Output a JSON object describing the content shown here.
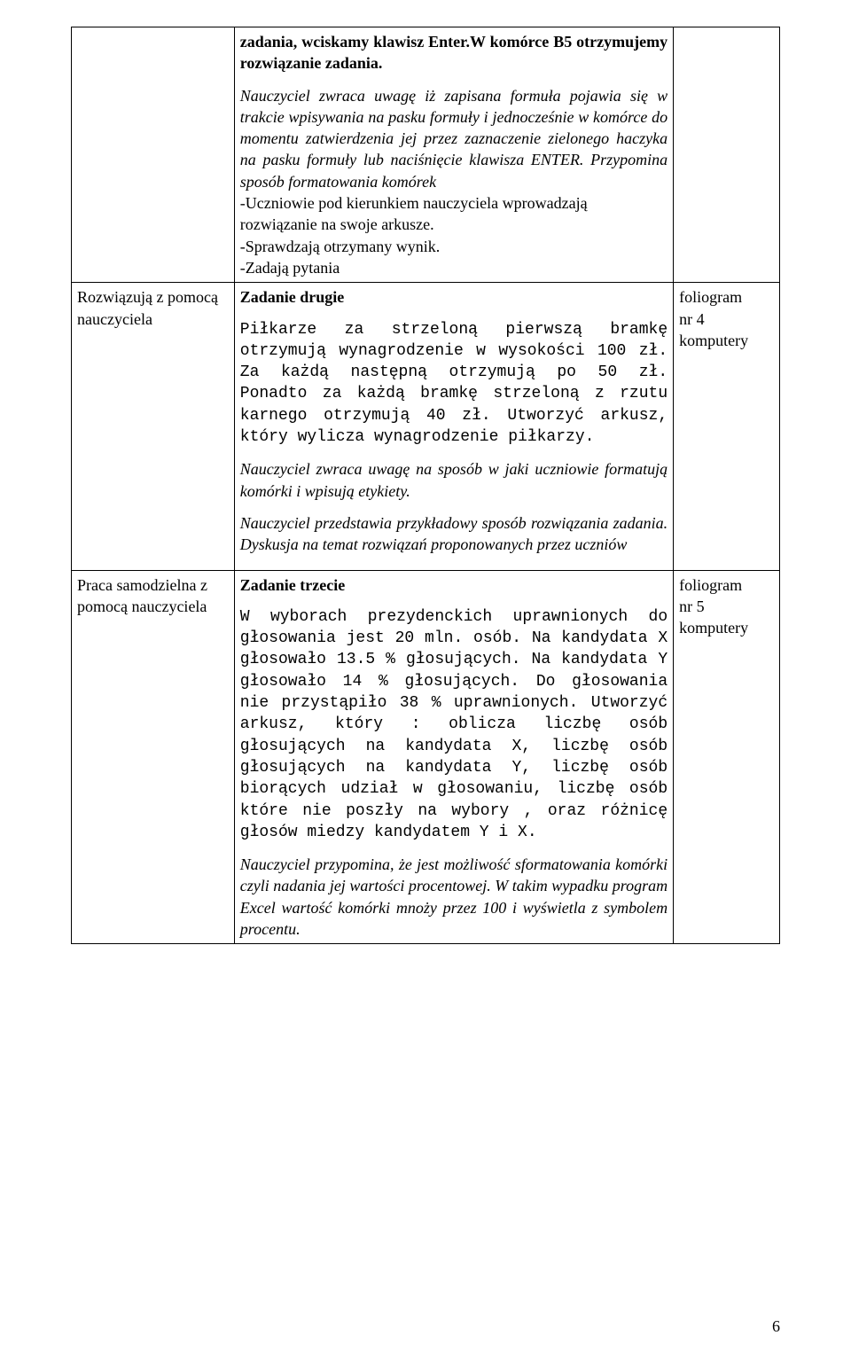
{
  "row1": {
    "col2": {
      "p1_bold": "zadania, wciskamy klawisz Enter.W komórce B5 otrzymujemy rozwiązanie zadania.",
      "p2_italic": "Nauczyciel zwraca uwagę iż zapisana formuła pojawia się w trakcie wpisywania na pasku formuły i jednocześnie w komórce do momentu zatwierdzenia jej przez zaznaczenie zielonego haczyka na pasku formuły lub naciśnięcie klawisza ENTER. Przypomina sposób formatowania komórek",
      "p3": "-Uczniowie pod kierunkiem nauczyciela wprowadzają",
      "p3b": " rozwiązanie na swoje arkusze.",
      "p4": "-Sprawdzają otrzymany wynik.",
      "p5": "-Zadają pytania"
    }
  },
  "row2": {
    "col1": "Rozwiązują z pomocą nauczyciela",
    "col2": {
      "title": "Zadanie drugie",
      "mono": "Piłkarze za strzeloną pierwszą bramkę otrzymują wynagrodzenie w wysokości 100 zł. Za każdą następną otrzymują po 50 zł. Ponadto za każdą bramkę strzeloną z rzutu karnego otrzymują 40 zł. Utworzyć arkusz, który wylicza wynagrodzenie piłkarzy.",
      "it1": "Nauczyciel zwraca uwagę na sposób w jaki uczniowie formatują komórki i wpisują etykiety.",
      "it2": "Nauczyciel przedstawia przykładowy sposób rozwiązania zadania. Dyskusja na temat rozwiązań proponowanych przez uczniów"
    },
    "col3": {
      "l1": "foliogram",
      "l2": "nr 4",
      "l3": "komputery"
    }
  },
  "row3": {
    "col1": "Praca samodzielna z pomocą nauczyciela",
    "col2": {
      "title": "Zadanie trzecie",
      "mono": "W wyborach prezydenckich uprawnionych do głosowania jest 20 mln. osób. Na kandydata X głosowało 13.5 % głosujących. Na kandydata Y głosowało 14 % głosujących. Do głosowania nie przystąpiło 38 % uprawnionych. Utworzyć arkusz, który : oblicza liczbę osób głosujących na kandydata X, liczbę osób głosujących na kandydata Y, liczbę osób biorących udział w głosowaniu, liczbę osób które nie poszły na wybory , oraz różnicę głosów miedzy kandydatem Y i X.",
      "it1": "Nauczyciel przypomina, że jest możliwość sformatowania komórki czyli nadania jej wartości procentowej. W takim wypadku program Excel wartość komórki mnoży przez 100   i wyświetla z symbolem procentu."
    },
    "col3": {
      "l1": "foliogram",
      "l2": "nr 5",
      "l3": "komputery"
    }
  },
  "page_number": "6"
}
